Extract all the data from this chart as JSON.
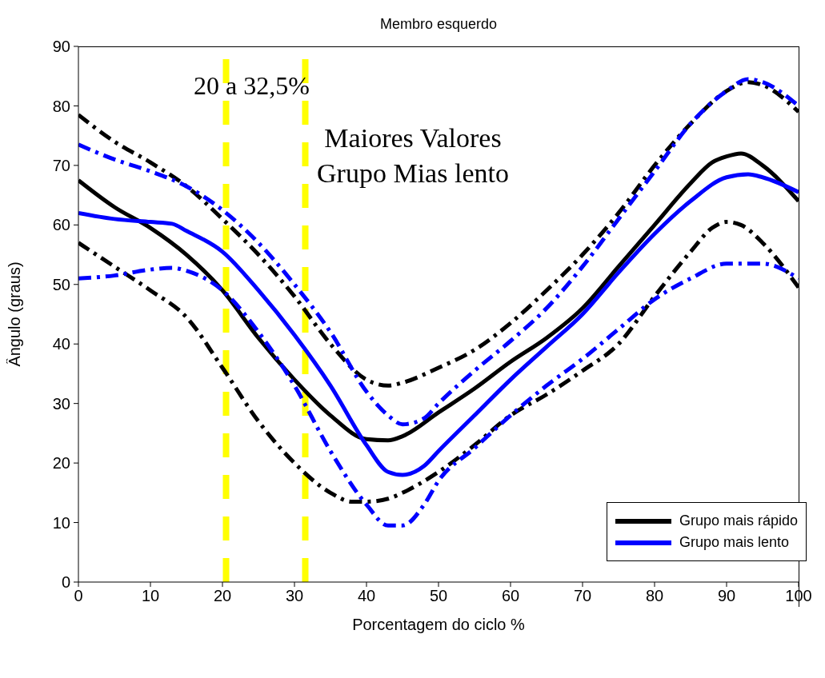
{
  "chart_data": {
    "type": "line",
    "title": "Membro esquerdo",
    "xlabel": "Porcentagem do ciclo %",
    "ylabel": "Ângulo (graus)",
    "xlim": [
      0,
      100
    ],
    "xticks": [
      0,
      10,
      20,
      30,
      40,
      50,
      60,
      70,
      80,
      90,
      100
    ],
    "ylim": [
      0,
      90
    ],
    "yticks": [
      0,
      10,
      20,
      30,
      40,
      50,
      60,
      70,
      80,
      90
    ],
    "legend": "bottom right",
    "marker": "none",
    "series": [
      {
        "name": "Grupo mais rápido",
        "color": "#000000",
        "line_style": "solid",
        "x": [
          0,
          5,
          10,
          15,
          20,
          25,
          30,
          35,
          40,
          43,
          45,
          50,
          55,
          60,
          65,
          70,
          75,
          80,
          85,
          88,
          90,
          92,
          95,
          100
        ],
        "values": [
          67.5,
          63,
          59.5,
          55,
          49,
          41,
          34,
          28,
          24,
          23.8,
          24.5,
          28.5,
          32.5,
          37,
          41,
          46,
          53,
          60,
          67,
          70.5,
          71.5,
          72,
          70,
          64
        ]
      },
      {
        "name": "Grupo mais lento",
        "color": "#0000ff",
        "line_style": "solid",
        "x": [
          0,
          5,
          10,
          13,
          15,
          20,
          25,
          30,
          35,
          40,
          43,
          45,
          48,
          50,
          55,
          60,
          65,
          70,
          75,
          80,
          85,
          90,
          93,
          95,
          100
        ],
        "values": [
          62,
          61,
          60.5,
          60.2,
          59,
          55.5,
          49,
          41.5,
          33,
          23,
          18.5,
          18,
          19.5,
          22,
          28,
          34,
          39.5,
          45,
          52,
          58.5,
          64,
          68,
          68.5,
          68,
          65.5
        ]
      },
      {
        "color": "#000000",
        "line_style": "dashed",
        "x": [
          0,
          5,
          10,
          15,
          20,
          25,
          30,
          35,
          40,
          43,
          45,
          50,
          55,
          60,
          65,
          70,
          75,
          80,
          85,
          90,
          93,
          95,
          100
        ],
        "values": [
          78.5,
          74,
          70.5,
          66.5,
          61,
          55,
          48,
          40,
          34,
          33,
          33.5,
          36,
          39,
          43.5,
          49,
          55,
          62,
          70,
          77,
          82.5,
          84,
          83.5,
          79
        ]
      },
      {
        "color": "#0000ff",
        "line_style": "dashed",
        "x": [
          0,
          5,
          10,
          15,
          20,
          25,
          30,
          35,
          40,
          43,
          45,
          48,
          50,
          55,
          60,
          65,
          70,
          75,
          80,
          85,
          90,
          93,
          95,
          100
        ],
        "values": [
          73.5,
          71,
          69,
          66.5,
          62.5,
          57,
          50,
          42,
          32,
          28,
          26.5,
          27.5,
          30,
          35.5,
          40.5,
          46,
          53,
          61,
          69,
          77,
          82.5,
          84.5,
          84,
          80
        ]
      },
      {
        "color": "#000000",
        "line_style": "dashed",
        "x": [
          0,
          5,
          10,
          15,
          20,
          25,
          30,
          35,
          38,
          40,
          43,
          45,
          50,
          55,
          60,
          65,
          70,
          75,
          80,
          85,
          88,
          90,
          92,
          95,
          100
        ],
        "values": [
          57,
          53,
          49,
          44.5,
          36,
          27,
          20,
          15,
          13.5,
          13.5,
          14,
          15,
          18.5,
          23,
          28,
          31.5,
          35.5,
          40,
          48,
          55.5,
          59.5,
          60.5,
          60,
          57,
          49.5
        ]
      },
      {
        "color": "#0000ff",
        "line_style": "dashed",
        "x": [
          0,
          5,
          10,
          13,
          15,
          20,
          25,
          30,
          35,
          40,
          43,
          45,
          48,
          50,
          55,
          60,
          65,
          70,
          75,
          80,
          85,
          90,
          93,
          95,
          100
        ],
        "values": [
          51,
          51.5,
          52.5,
          52.8,
          52.3,
          49,
          42,
          33,
          22,
          13,
          9.5,
          9.5,
          13,
          17,
          22.5,
          28,
          33,
          37.5,
          42.5,
          47.5,
          51,
          53.5,
          53.5,
          53.5,
          51
        ]
      }
    ],
    "ref_lines": [
      {
        "axis": "x",
        "value": 20.5,
        "color": "#ffff00",
        "line_style": "dashed"
      },
      {
        "axis": "x",
        "value": 31.5,
        "color": "#ffff00",
        "line_style": "dashed"
      }
    ],
    "annotations": [
      "20 a 32,5%",
      "Maiores Valores Grupo Mias lento"
    ]
  }
}
